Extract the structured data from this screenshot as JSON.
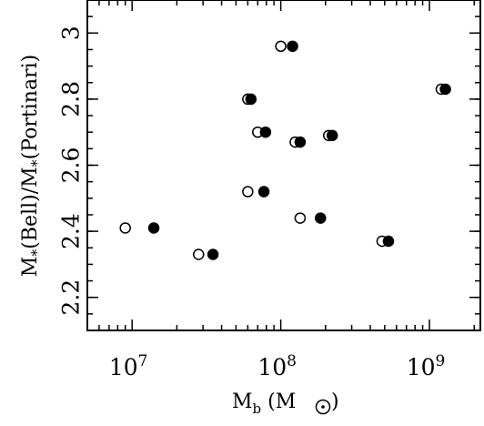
{
  "chart_data": {
    "type": "scatter",
    "xscale": "log",
    "xlim": [
      5000000,
      2200000000
    ],
    "ylim": [
      2.1,
      3.1
    ],
    "xlabel": "M_b (M_sun)",
    "ylabel": "M*(Bell)/M*(Portinari)",
    "x_ticks": [
      {
        "value": 10000000,
        "label_base": "10",
        "label_exp": "7"
      },
      {
        "value": 100000000,
        "label_base": "10",
        "label_exp": "8"
      },
      {
        "value": 1000000000,
        "label_base": "10",
        "label_exp": "9"
      }
    ],
    "y_ticks": [
      {
        "value": 2.2,
        "label": "2.2"
      },
      {
        "value": 2.4,
        "label": "2.4"
      },
      {
        "value": 2.6,
        "label": "2.6"
      },
      {
        "value": 2.8,
        "label": "2.8"
      },
      {
        "value": 3.0,
        "label": "3"
      }
    ],
    "series": [
      {
        "marker": "open-circle",
        "points": [
          {
            "x": 9000000,
            "y": 2.41
          },
          {
            "x": 28000000,
            "y": 2.33
          },
          {
            "x": 60000000,
            "y": 2.52
          },
          {
            "x": 60000000,
            "y": 2.8
          },
          {
            "x": 70000000,
            "y": 2.7
          },
          {
            "x": 100000000,
            "y": 2.96
          },
          {
            "x": 125000000,
            "y": 2.67
          },
          {
            "x": 135000000,
            "y": 2.44
          },
          {
            "x": 210000000,
            "y": 2.69
          },
          {
            "x": 480000000,
            "y": 2.37
          },
          {
            "x": 1200000000,
            "y": 2.83
          }
        ]
      },
      {
        "marker": "filled-circle",
        "points": [
          {
            "x": 14000000,
            "y": 2.41
          },
          {
            "x": 35000000,
            "y": 2.33
          },
          {
            "x": 77000000,
            "y": 2.52
          },
          {
            "x": 63000000,
            "y": 2.8
          },
          {
            "x": 79000000,
            "y": 2.7
          },
          {
            "x": 120000000,
            "y": 2.96
          },
          {
            "x": 135000000,
            "y": 2.67
          },
          {
            "x": 185000000,
            "y": 2.44
          },
          {
            "x": 222000000,
            "y": 2.69
          },
          {
            "x": 530000000,
            "y": 2.37
          },
          {
            "x": 1280000000,
            "y": 2.83
          }
        ]
      }
    ]
  }
}
